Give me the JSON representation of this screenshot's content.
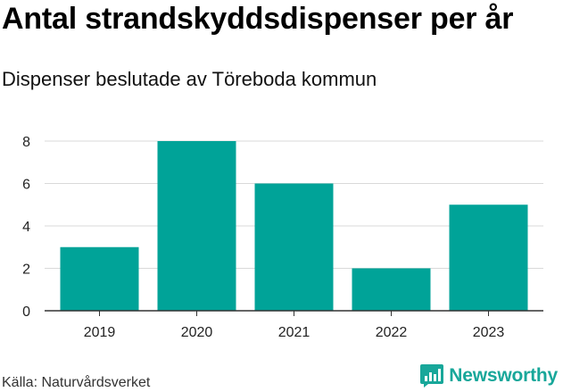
{
  "header": {
    "title": "Antal strandskyddsdispenser per år",
    "subtitle": "Dispenser beslutade av Töreboda kommun"
  },
  "footer": {
    "source": "Källa: Naturvårdsverket",
    "brand": "Newsworthy",
    "brand_icon": "newsworthy-logo-icon"
  },
  "colors": {
    "bar": "#00a398",
    "grid": "#d9d9d9",
    "axis": "#333333",
    "brand": "#18a79a"
  },
  "chart_data": {
    "type": "bar",
    "title": "Antal strandskyddsdispenser per år",
    "subtitle": "Dispenser beslutade av Töreboda kommun",
    "xlabel": "",
    "ylabel": "",
    "categories": [
      "2019",
      "2020",
      "2021",
      "2022",
      "2023"
    ],
    "values": [
      3,
      8,
      6,
      2,
      5
    ],
    "ylim": [
      0,
      8
    ],
    "yticks": [
      0,
      2,
      4,
      6,
      8
    ],
    "grid": true,
    "legend": "none"
  }
}
